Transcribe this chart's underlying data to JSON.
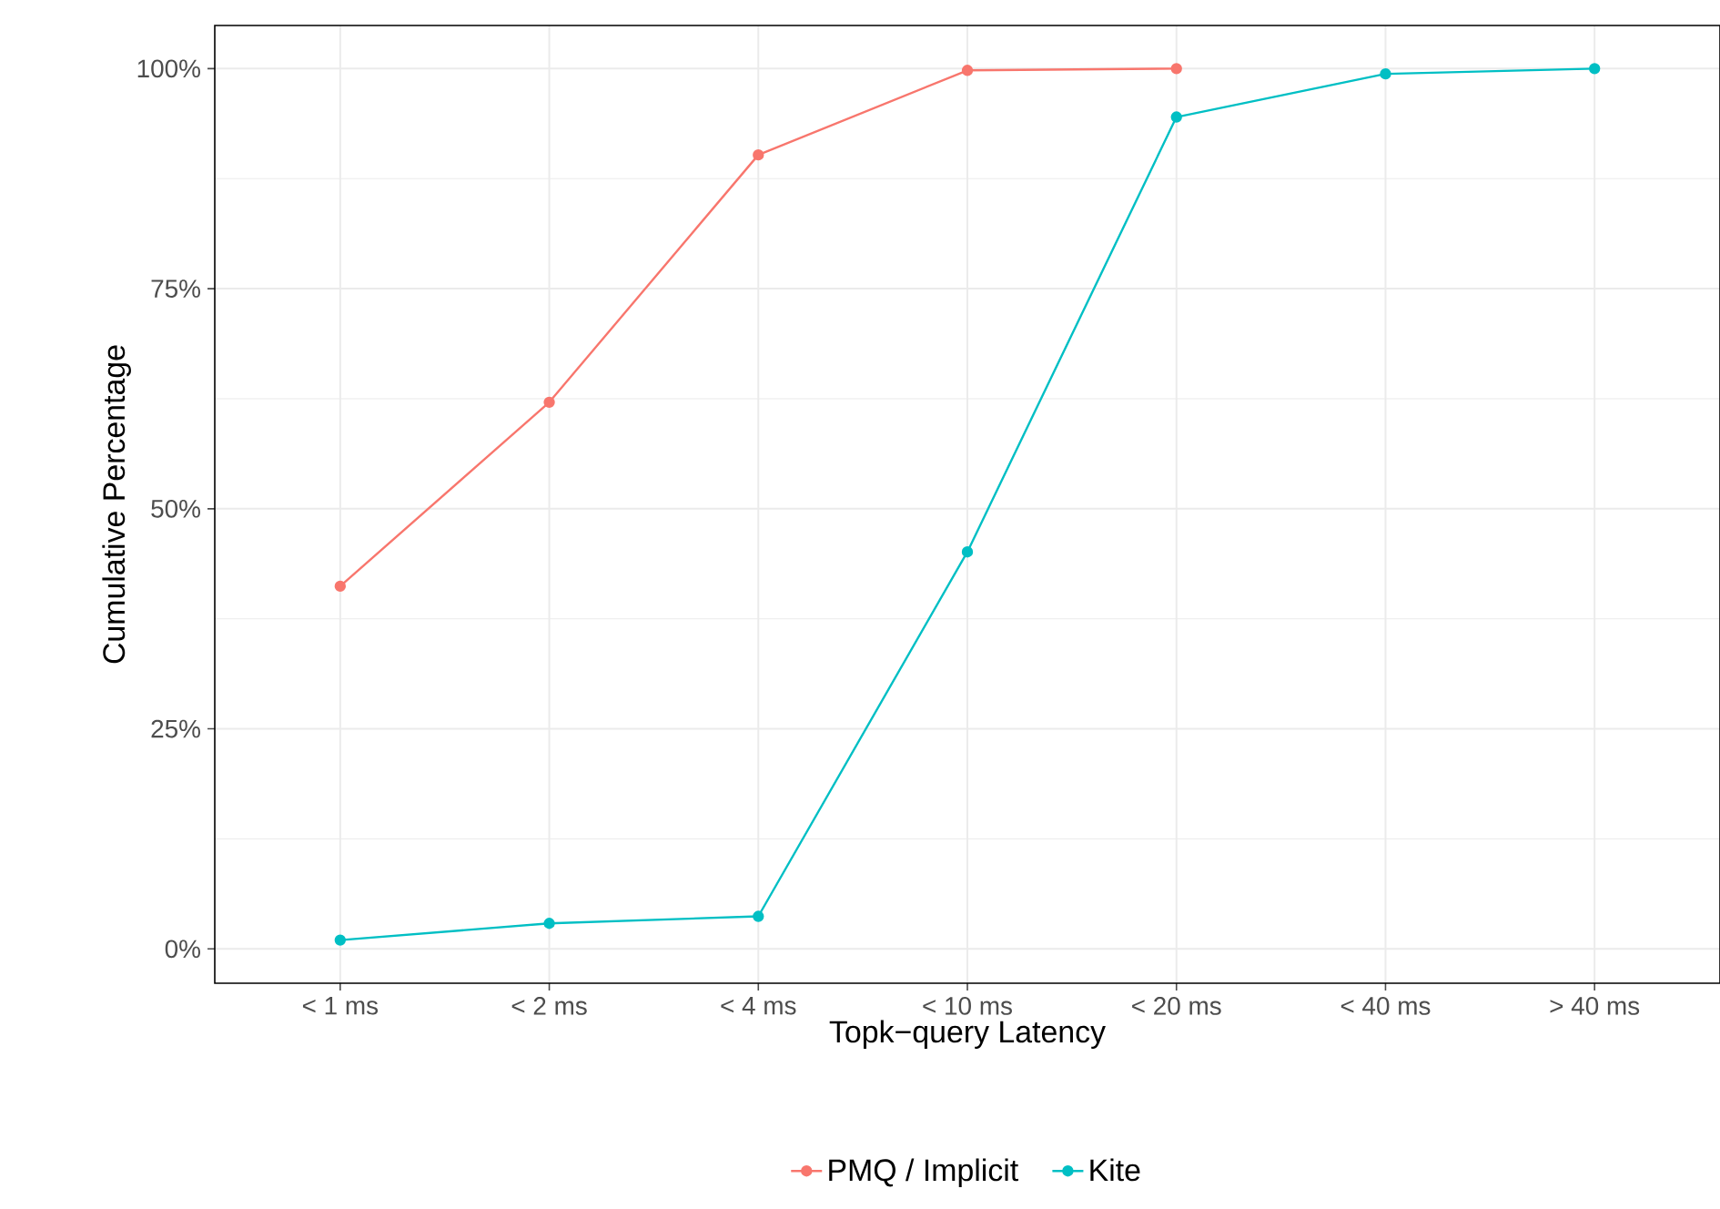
{
  "chart_data": {
    "type": "line",
    "xlabel": "Topk−query Latency",
    "ylabel": "Cumulative Percentage",
    "categories": [
      "< 1 ms",
      "< 2 ms",
      "< 4 ms",
      "< 10 ms",
      "< 20 ms",
      "< 40 ms",
      "> 40 ms"
    ],
    "series": [
      {
        "name": "PMQ / Implicit",
        "color": "#f8766d",
        "values": [
          41.2,
          62.1,
          90.2,
          99.8,
          100,
          null,
          null
        ]
      },
      {
        "name": "Kite",
        "color": "#00bfc4",
        "values": [
          1.0,
          2.9,
          3.7,
          45.1,
          94.5,
          99.4,
          100
        ]
      }
    ],
    "ylim": [
      -3.9,
      104.9
    ],
    "yticks": [
      {
        "value": 0,
        "label": "0%"
      },
      {
        "value": 25,
        "label": "25%"
      },
      {
        "value": 50,
        "label": "50%"
      },
      {
        "value": 75,
        "label": "75%"
      },
      {
        "value": 100,
        "label": "100%"
      }
    ],
    "grid": true,
    "legend": "bottom",
    "marker": "circle",
    "line_style": "solid"
  }
}
